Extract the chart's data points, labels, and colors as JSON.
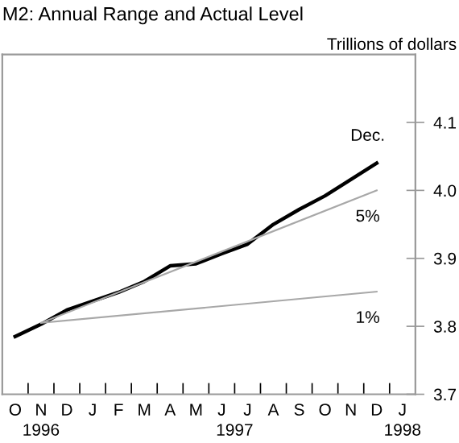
{
  "chart_data": {
    "type": "line",
    "title": "M2: Annual Range and Actual Level",
    "ylabel": "Trillions of dollars",
    "categories": [
      "O",
      "N",
      "D",
      "J",
      "F",
      "M",
      "A",
      "M",
      "J",
      "J",
      "A",
      "S",
      "O",
      "N",
      "D",
      "J"
    ],
    "series": [
      {
        "color": "#000000",
        "values": [
          3.785,
          3.803,
          3.824,
          3.837,
          3.85,
          3.866,
          3.889,
          3.892,
          3.907,
          3.921,
          3.95,
          3.972,
          3.992,
          4.016,
          4.04,
          null
        ]
      },
      {
        "color": "#a8a8a8",
        "values": [
          null,
          3.805,
          null,
          null,
          null,
          null,
          null,
          null,
          null,
          null,
          null,
          null,
          null,
          null,
          4.0,
          null
        ]
      },
      {
        "color": "#a8a8a8",
        "values": [
          null,
          3.805,
          null,
          null,
          null,
          null,
          null,
          null,
          null,
          null,
          null,
          null,
          null,
          null,
          3.851,
          null
        ]
      }
    ],
    "annotations": [
      "Dec.",
      "5%",
      "1%",
      "1996",
      "1997",
      "1998"
    ],
    "ylim": [
      3.7,
      4.2
    ],
    "yticks": [
      {
        "value": 3.7,
        "label": "3.7"
      },
      {
        "value": 3.8,
        "label": "3.8"
      },
      {
        "value": 3.9,
        "label": "3.9"
      },
      {
        "value": 4.0,
        "label": "4.0"
      },
      {
        "value": 4.1,
        "label": "4.1"
      }
    ],
    "grid": false,
    "legend": false,
    "marker": "none",
    "line_style": "solid"
  }
}
